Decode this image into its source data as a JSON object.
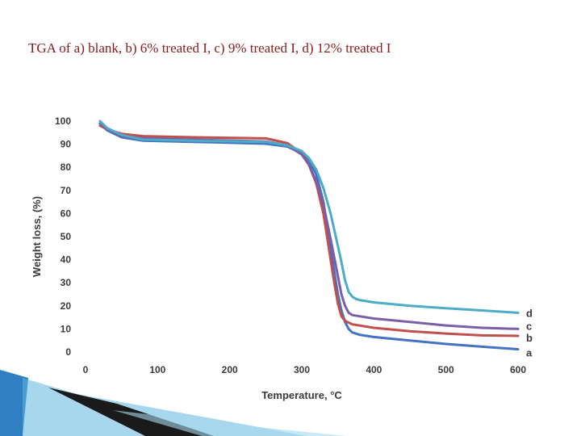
{
  "slide": {
    "title": "TGA of a) blank, b) 6% treated I, c) 9% treated I, d)  12% treated I"
  },
  "chart_data": {
    "type": "line",
    "xlabel": "Temperature, °C",
    "ylabel": "Weight loss, (%)",
    "xlim": [
      0,
      600
    ],
    "ylim": [
      0,
      100
    ],
    "xticks": [
      "0",
      "100",
      "200",
      "300",
      "400",
      "500",
      "600"
    ],
    "yticks": [
      "0",
      "10",
      "20",
      "30",
      "40",
      "50",
      "60",
      "70",
      "80",
      "90",
      "100"
    ],
    "grid": false,
    "series": [
      {
        "name": "a",
        "color": "#4472c4",
        "x": [
          20,
          30,
          50,
          80,
          150,
          250,
          280,
          300,
          310,
          320,
          330,
          340,
          345,
          350,
          355,
          360,
          365,
          370,
          380,
          400,
          450,
          500,
          550,
          600
        ],
        "y": [
          99,
          96,
          93,
          91.5,
          91,
          90.2,
          89,
          86,
          83,
          77,
          65,
          45,
          35,
          25,
          18,
          13,
          10,
          8.5,
          7.5,
          6.5,
          5,
          3.5,
          2.3,
          1.2
        ]
      },
      {
        "name": "b",
        "color": "#c0504d",
        "x": [
          20,
          30,
          50,
          80,
          150,
          250,
          280,
          300,
          310,
          320,
          330,
          335,
          340,
          345,
          350,
          355,
          360,
          370,
          380,
          400,
          450,
          500,
          550,
          600
        ],
        "y": [
          98,
          96.5,
          94.5,
          93.5,
          93,
          92.5,
          90.5,
          86,
          81,
          73,
          60,
          50,
          40,
          30,
          21,
          15.5,
          13.5,
          12,
          11.5,
          10.5,
          9,
          8,
          7.2,
          7
        ]
      },
      {
        "name": "c",
        "color": "#7a5ea8",
        "x": [
          20,
          30,
          50,
          80,
          150,
          250,
          280,
          300,
          310,
          320,
          330,
          340,
          345,
          350,
          355,
          360,
          365,
          370,
          380,
          400,
          450,
          500,
          550,
          600
        ],
        "y": [
          99,
          96.5,
          93.5,
          92.5,
          92,
          91.2,
          89.5,
          85.5,
          81,
          74,
          64,
          49,
          41,
          33,
          25,
          20,
          17,
          16,
          15.5,
          14.5,
          13,
          11.5,
          10.5,
          10
        ]
      },
      {
        "name": "d",
        "color": "#4bacc6",
        "x": [
          20,
          30,
          50,
          80,
          150,
          250,
          280,
          300,
          310,
          320,
          330,
          340,
          350,
          355,
          360,
          365,
          370,
          375,
          380,
          400,
          450,
          500,
          550,
          600
        ],
        "y": [
          100,
          97,
          94,
          92,
          91.5,
          91,
          89.5,
          87,
          84,
          79,
          71,
          60,
          46,
          39,
          31,
          26,
          24,
          23,
          22.5,
          21.5,
          20,
          19,
          18,
          17
        ]
      }
    ]
  }
}
